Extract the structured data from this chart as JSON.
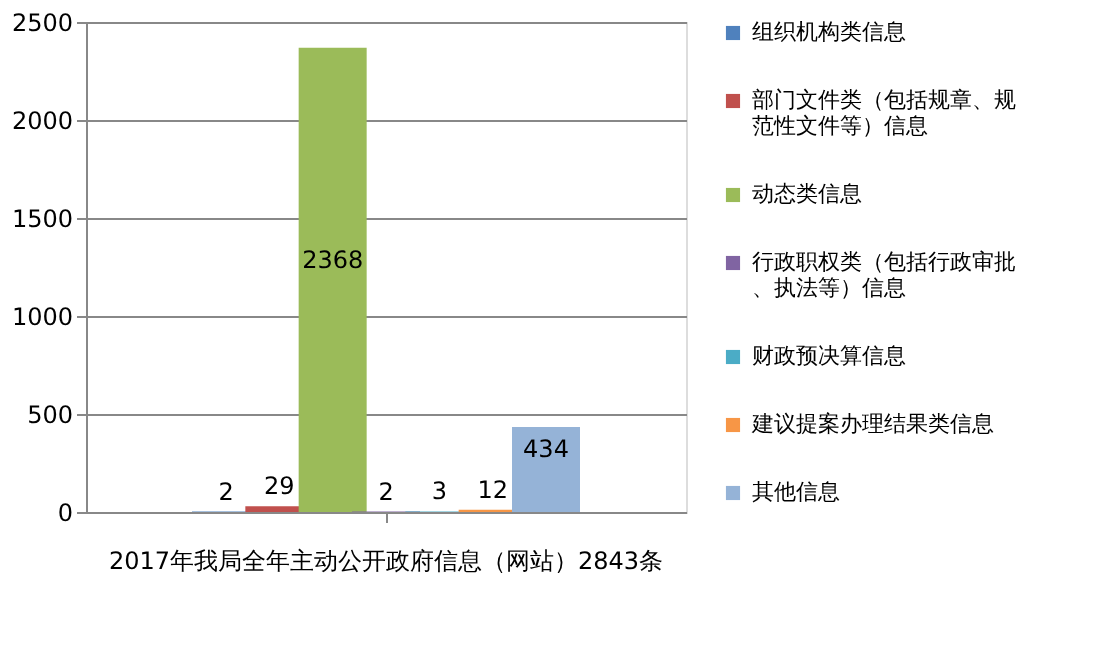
{
  "chart_data": {
    "type": "bar",
    "categories": [
      "2017年我局全年主动公开政府信息（网站）2843条"
    ],
    "series": [
      {
        "name": "组织机构类信息",
        "color": "#4f81bd",
        "values": [
          2
        ]
      },
      {
        "name": "部门文件类（包括规章、规范性文件等）信息",
        "color": "#c0504d",
        "values": [
          29
        ]
      },
      {
        "name": "动态类信息",
        "color": "#9bbb59",
        "values": [
          2368
        ]
      },
      {
        "name": "行政职权类（包括行政审批、执法等）信息",
        "color": "#8064a2",
        "values": [
          2
        ]
      },
      {
        "name": "财政预决算信息",
        "color": "#4bacc6",
        "values": [
          3
        ]
      },
      {
        "name": "建议提案办理结果类信息",
        "color": "#f79646",
        "values": [
          12
        ]
      },
      {
        "name": "其他信息",
        "color": "#95b3d7",
        "values": [
          434
        ]
      }
    ],
    "ylim": [
      0,
      2500
    ],
    "yticks": [
      0,
      500,
      1000,
      1500,
      2000,
      2500
    ],
    "grid": "y",
    "legend": "right",
    "data_labels": true
  }
}
